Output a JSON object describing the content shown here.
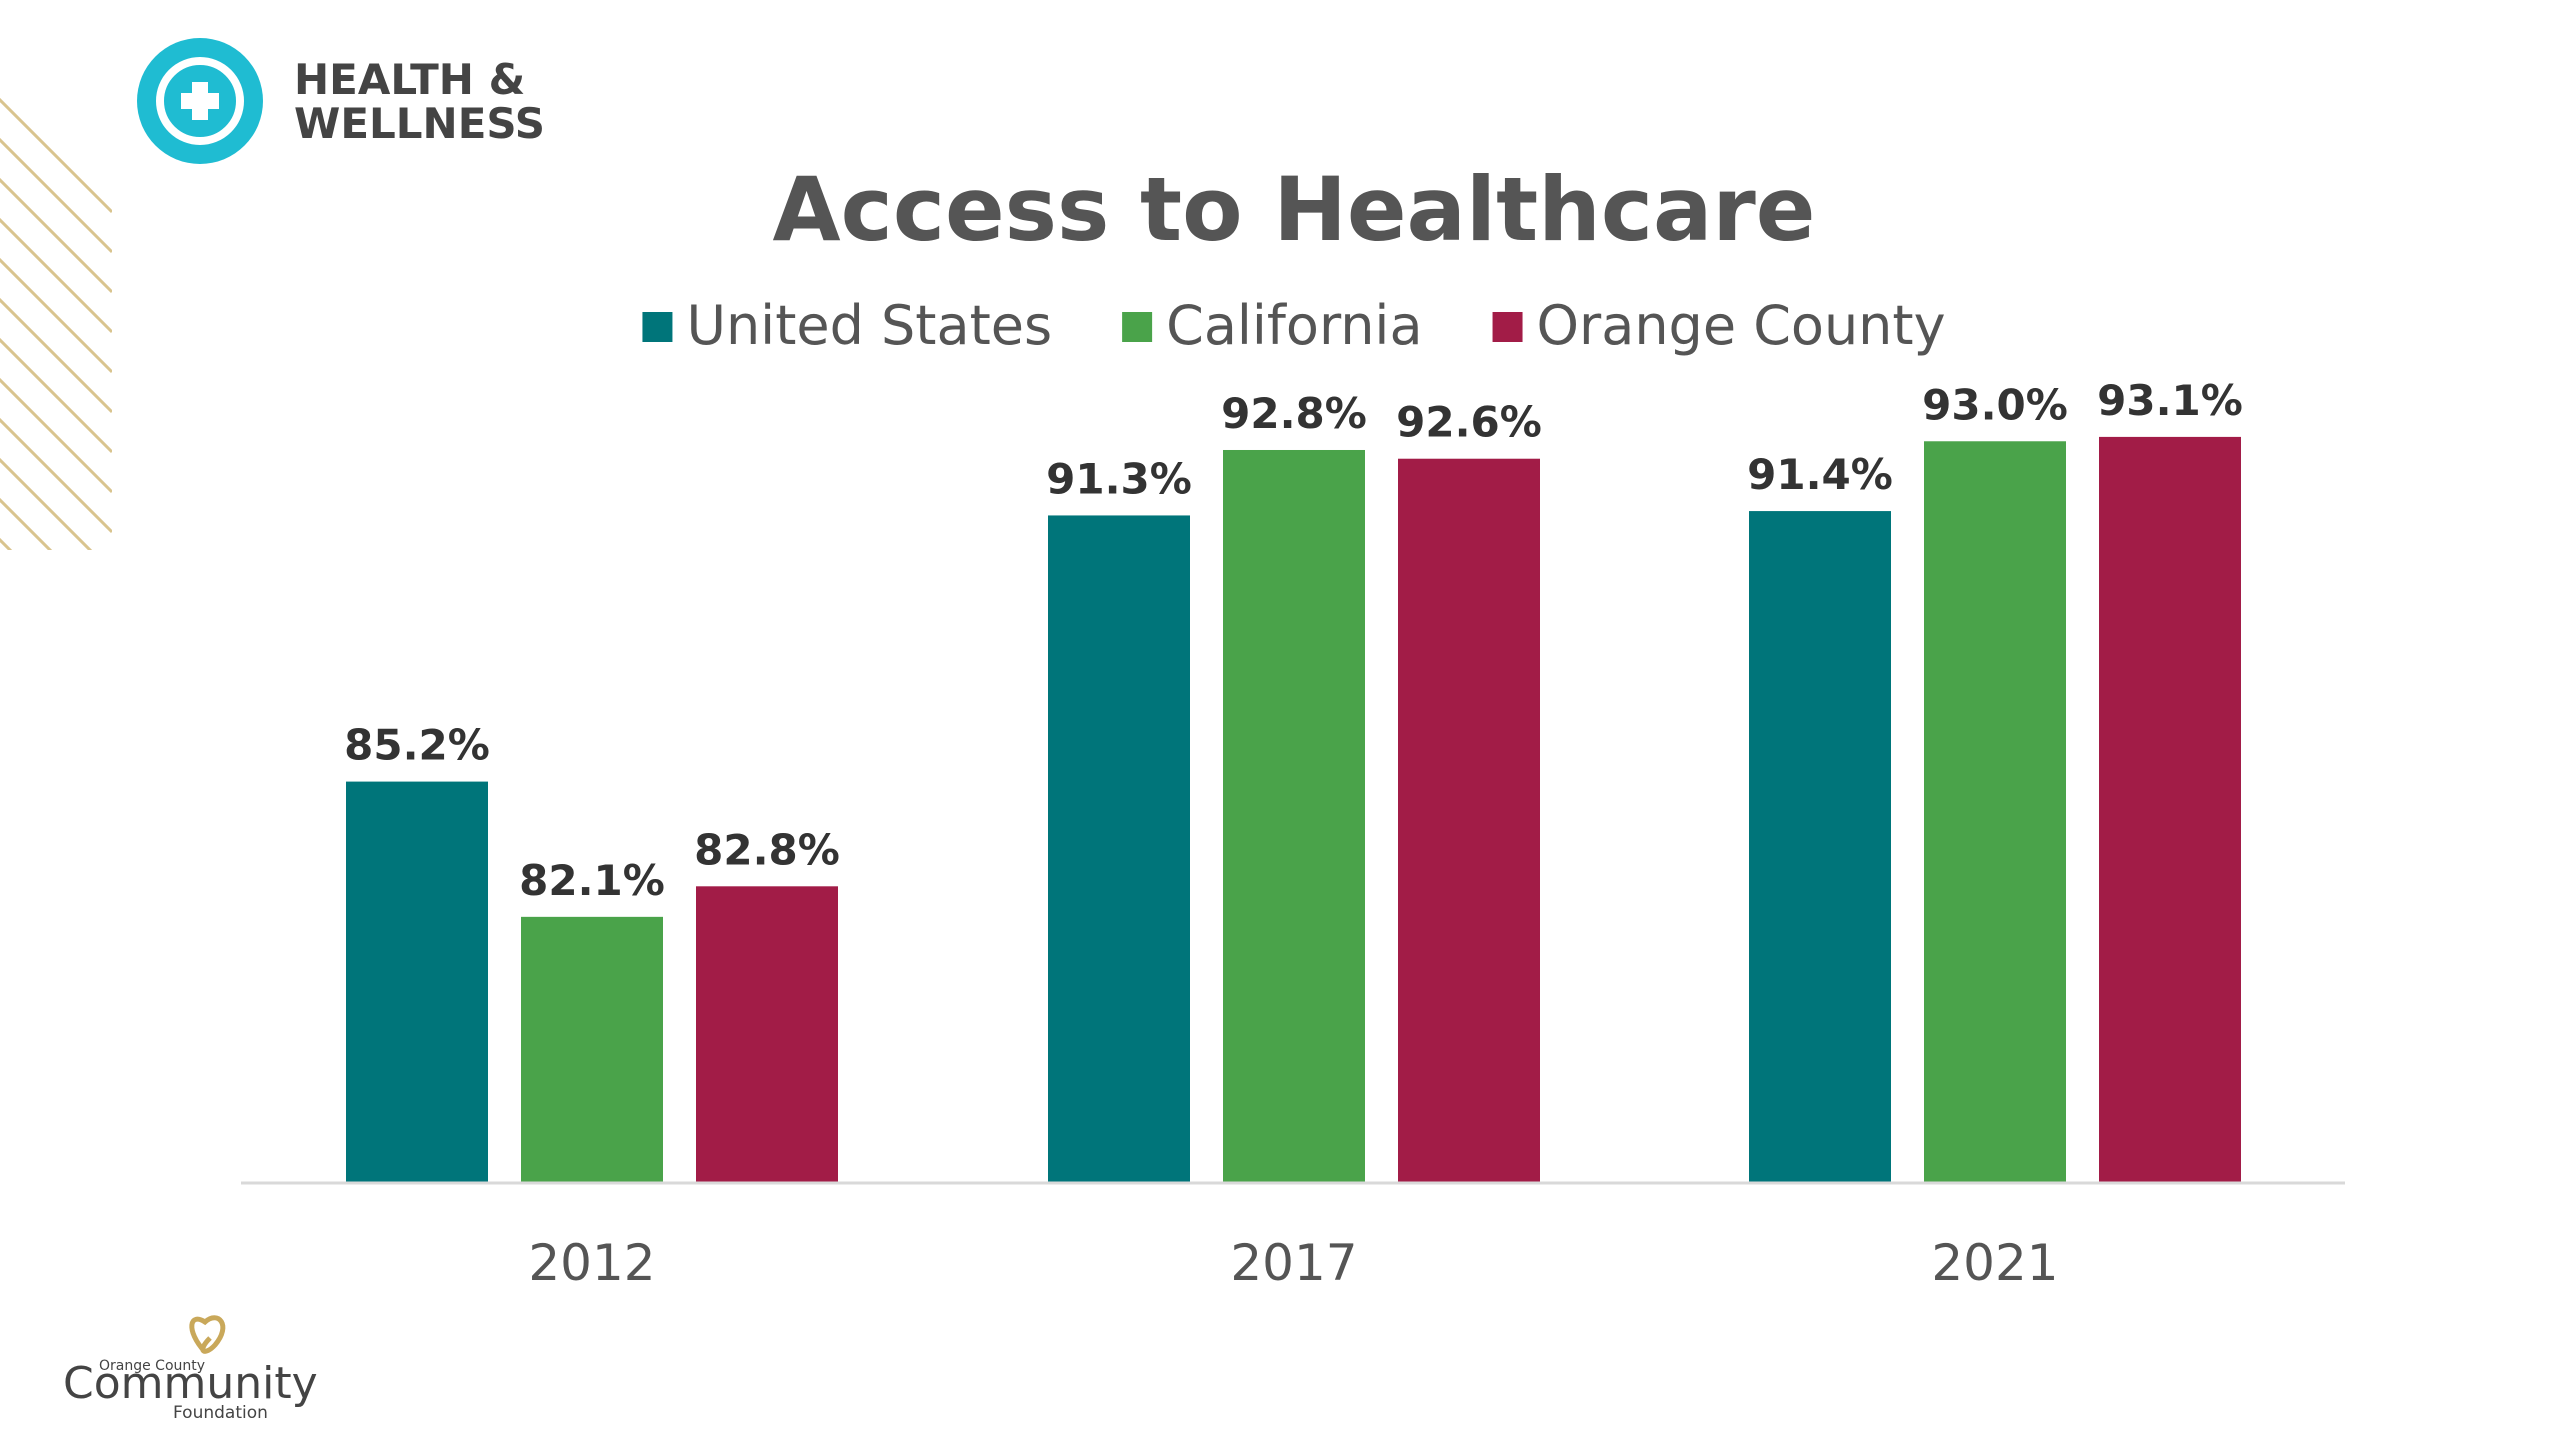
{
  "branding": {
    "section": [
      "HEALTH &",
      "WELLNESS"
    ],
    "org_small": "Orange County",
    "org_name": "Community",
    "org_sub": "Foundation"
  },
  "chart_data": {
    "type": "bar",
    "title": "Access to Healthcare",
    "categories": [
      "2012",
      "2017",
      "2021"
    ],
    "series": [
      {
        "name": "United States",
        "color": "#00757a",
        "values": [
          85.2,
          91.3,
          91.4
        ],
        "value_labels": [
          "85.2%",
          "91.3%",
          "91.4%"
        ]
      },
      {
        "name": "California",
        "color": "#4aa34a",
        "values": [
          82.1,
          92.8,
          93.0
        ],
        "value_labels": [
          "82.1%",
          "92.8%",
          "93.0%"
        ]
      },
      {
        "name": "Orange County",
        "color": "#a21c47",
        "values": [
          82.8,
          92.6,
          93.1
        ],
        "value_labels": [
          "82.8%",
          "92.6%",
          "93.1%"
        ]
      }
    ],
    "ylim": [
      76,
      95
    ]
  }
}
